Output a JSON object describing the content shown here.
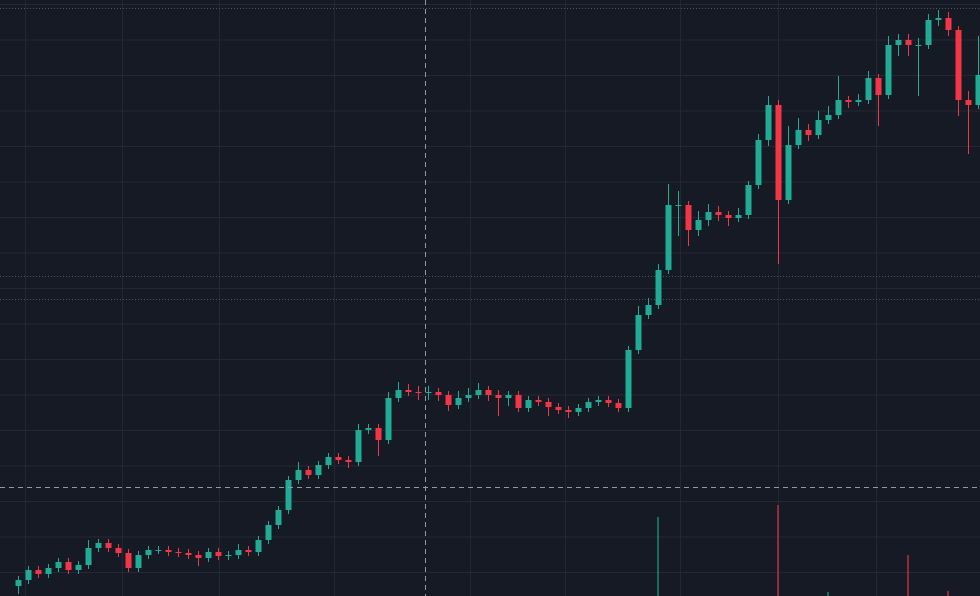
{
  "chart_data": {
    "type": "candlestick",
    "open": [
      10,
      16,
      26,
      22,
      28,
      34,
      26,
      31,
      48,
      53,
      48,
      43,
      28,
      41,
      46,
      46,
      44,
      43,
      41,
      38,
      44,
      40,
      41,
      46,
      44,
      56,
      71,
      86,
      116,
      126,
      121,
      131,
      139,
      136,
      134,
      166,
      168,
      156,
      198,
      206,
      204,
      203,
      204,
      201,
      191,
      198,
      201,
      206,
      201,
      198,
      201,
      188,
      196,
      194,
      189,
      186,
      184,
      188,
      194,
      196,
      193,
      188,
      246,
      281,
      291,
      326,
      391,
      391,
      366,
      376,
      384,
      381,
      378,
      381,
      411,
      456,
      491,
      396,
      451,
      466,
      461,
      476,
      481,
      496,
      494,
      496,
      518,
      501,
      551,
      556,
      551,
      551,
      576,
      578,
      566,
      496,
      491
    ],
    "high": [
      20,
      30,
      30,
      32,
      38,
      38,
      35,
      56,
      57,
      57,
      52,
      47,
      45,
      50,
      50,
      50,
      48,
      47,
      45,
      48,
      48,
      45,
      52,
      50,
      60,
      75,
      90,
      120,
      134,
      130,
      135,
      143,
      143,
      140,
      172,
      172,
      172,
      204,
      214,
      212,
      210,
      210,
      208,
      205,
      205,
      208,
      213,
      210,
      206,
      205,
      205,
      200,
      200,
      198,
      193,
      190,
      192,
      198,
      200,
      200,
      197,
      250,
      290,
      298,
      332,
      412,
      405,
      395,
      385,
      392,
      390,
      385,
      388,
      415,
      462,
      500,
      496,
      470,
      478,
      472,
      485,
      490,
      520,
      500,
      502,
      525,
      522,
      560,
      562,
      562,
      558,
      582,
      586,
      584,
      570,
      505,
      560
    ],
    "low": [
      2,
      12,
      18,
      18,
      24,
      22,
      22,
      27,
      44,
      44,
      39,
      24,
      24,
      37,
      42,
      40,
      39,
      37,
      30,
      34,
      36,
      36,
      37,
      40,
      40,
      52,
      67,
      82,
      112,
      117,
      117,
      127,
      132,
      128,
      130,
      162,
      140,
      152,
      194,
      200,
      196,
      196,
      195,
      185,
      187,
      194,
      197,
      195,
      180,
      190,
      184,
      184,
      190,
      180,
      182,
      178,
      180,
      184,
      190,
      189,
      184,
      184,
      242,
      277,
      287,
      322,
      360,
      350,
      360,
      370,
      375,
      370,
      374,
      377,
      407,
      450,
      332,
      392,
      447,
      455,
      457,
      472,
      477,
      488,
      490,
      492,
      470,
      497,
      540,
      540,
      500,
      547,
      570,
      560,
      480,
      442,
      487
    ],
    "close": [
      16,
      26,
      22,
      28,
      34,
      26,
      31,
      48,
      53,
      48,
      43,
      28,
      41,
      46,
      46,
      44,
      43,
      41,
      38,
      44,
      40,
      41,
      46,
      44,
      56,
      71,
      86,
      116,
      126,
      121,
      131,
      139,
      136,
      134,
      166,
      168,
      156,
      198,
      206,
      204,
      203,
      204,
      201,
      191,
      198,
      201,
      206,
      201,
      198,
      201,
      188,
      196,
      194,
      189,
      186,
      184,
      188,
      194,
      196,
      193,
      188,
      246,
      281,
      291,
      326,
      391,
      391,
      366,
      376,
      384,
      381,
      378,
      381,
      411,
      456,
      491,
      396,
      451,
      466,
      461,
      476,
      481,
      496,
      494,
      496,
      518,
      501,
      551,
      556,
      551,
      551,
      576,
      578,
      566,
      496,
      491,
      521
    ],
    "volume": [
      null,
      null,
      null,
      null,
      null,
      null,
      null,
      null,
      null,
      null,
      null,
      null,
      null,
      null,
      null,
      null,
      null,
      null,
      null,
      null,
      null,
      null,
      null,
      null,
      null,
      null,
      null,
      null,
      null,
      null,
      null,
      null,
      null,
      null,
      null,
      null,
      null,
      null,
      null,
      null,
      null,
      null,
      null,
      null,
      null,
      null,
      null,
      null,
      null,
      null,
      null,
      null,
      null,
      null,
      null,
      null,
      null,
      null,
      null,
      null,
      null,
      null,
      null,
      null,
      79,
      null,
      null,
      null,
      null,
      null,
      null,
      null,
      null,
      null,
      null,
      null,
      91,
      null,
      null,
      null,
      null,
      4,
      null,
      null,
      null,
      null,
      null,
      null,
      null,
      41,
      null,
      null,
      null,
      5,
      null,
      null,
      null
    ],
    "ylim": [
      0,
      596
    ],
    "volume_lim": [
      0,
      596
    ],
    "up_color": "#22ab94",
    "down_color": "#f23645",
    "grid": true
  }
}
